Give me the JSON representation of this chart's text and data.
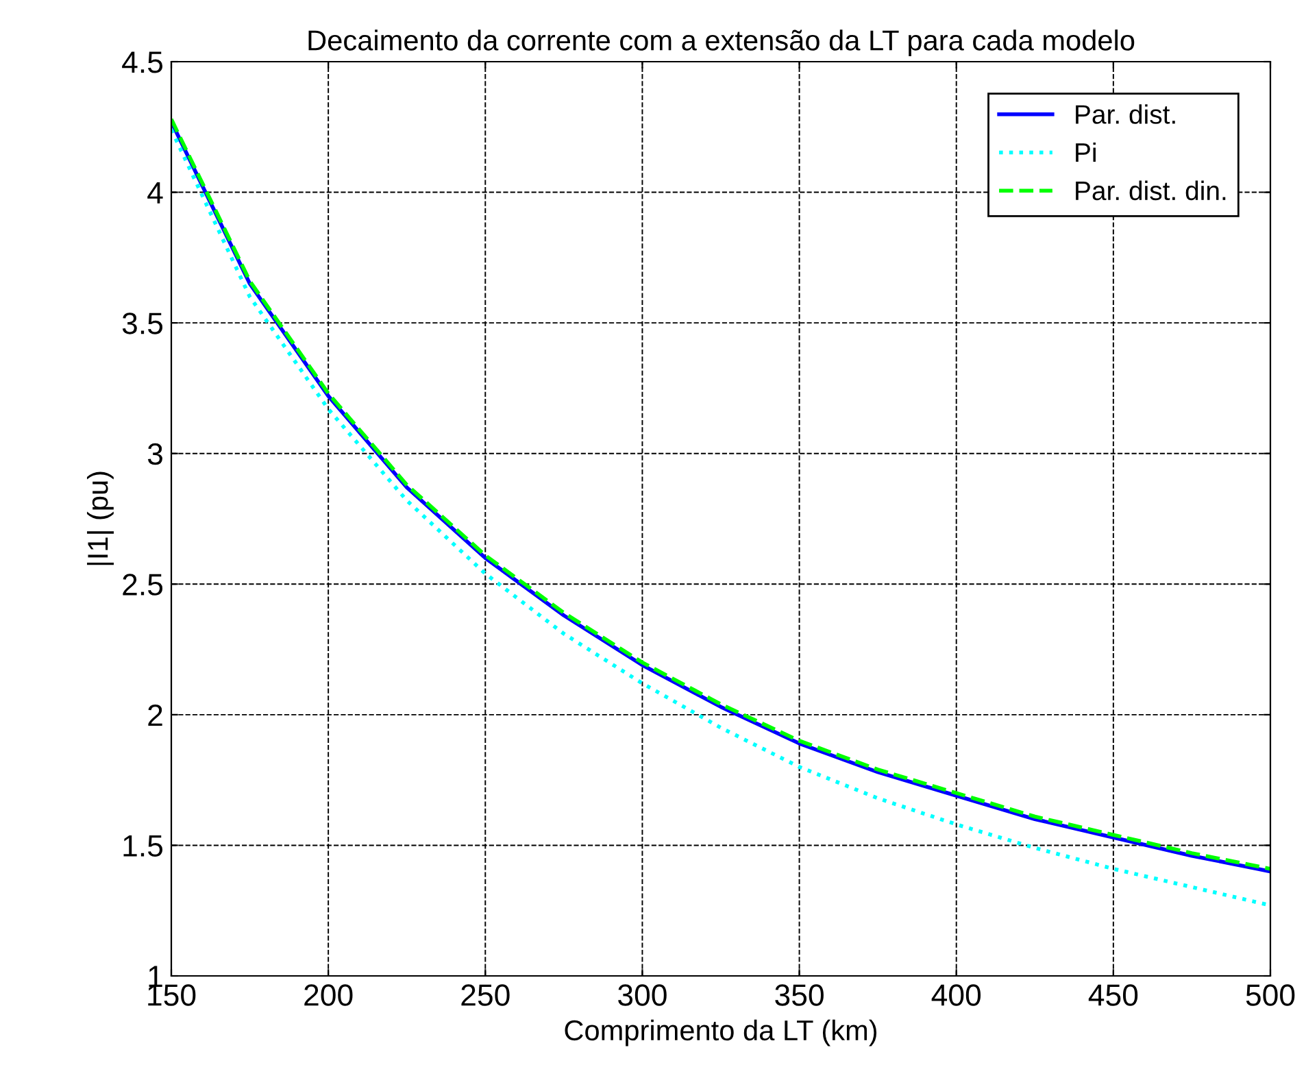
{
  "chart_data": {
    "type": "line",
    "title": "Decaimento da corrente com a extensão da LT para cada modelo",
    "xlabel": "Comprimento da LT (km)",
    "ylabel": "|I1| (pu)",
    "x": [
      150,
      175,
      200,
      225,
      250,
      275,
      300,
      325,
      350,
      375,
      400,
      425,
      450,
      475,
      500
    ],
    "series": [
      {
        "name": "Par. dist.",
        "color": "#0000ff",
        "line_style": "solid",
        "values": [
          4.27,
          3.65,
          3.22,
          2.87,
          2.6,
          2.38,
          2.19,
          2.03,
          1.89,
          1.78,
          1.69,
          1.6,
          1.53,
          1.46,
          1.4
        ]
      },
      {
        "name": "Pi",
        "color": "#00ffff",
        "line_style": "dotted",
        "values": [
          4.24,
          3.6,
          3.17,
          2.82,
          2.54,
          2.31,
          2.12,
          1.95,
          1.8,
          1.68,
          1.58,
          1.49,
          1.41,
          1.34,
          1.27
        ]
      },
      {
        "name": "Par. dist. din.",
        "color": "#00ff00",
        "line_style": "dashed",
        "values": [
          4.28,
          3.66,
          3.23,
          2.88,
          2.61,
          2.39,
          2.2,
          2.04,
          1.9,
          1.79,
          1.7,
          1.61,
          1.54,
          1.47,
          1.41
        ]
      }
    ],
    "xlim": [
      150,
      500
    ],
    "xticks": [
      150,
      200,
      250,
      300,
      350,
      400,
      450,
      500
    ],
    "ylim": [
      1,
      4.5
    ],
    "yticks": [
      1,
      1.5,
      2,
      2.5,
      3,
      3.5,
      4,
      4.5
    ],
    "grid": true,
    "legend": "top right"
  }
}
